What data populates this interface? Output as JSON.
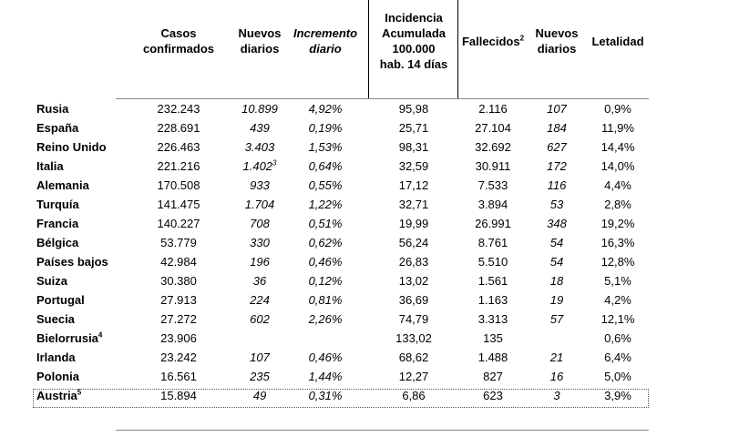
{
  "headers": {
    "casos": [
      "Casos",
      "confirmados"
    ],
    "nuevos1": [
      "Nuevos",
      "diarios"
    ],
    "incremento": [
      "Incremento",
      "diario"
    ],
    "incidencia": [
      "Incidencia",
      "Acumulada",
      "100.000",
      "hab. 14 días"
    ],
    "fallecidos": "Fallecidos",
    "fallecidos_sup": "2",
    "nuevos2": [
      "Nuevos",
      "diarios"
    ],
    "letalidad": "Letalidad"
  },
  "rows": [
    {
      "pais": "Rusia",
      "sup": "",
      "casos": "232.243",
      "nuevos": "10.899",
      "nuevos_sup": "",
      "inc": "4,92%",
      "incid": "95,98",
      "fall": "2.116",
      "nfall": "107",
      "let": "0,9%"
    },
    {
      "pais": "España",
      "sup": "",
      "casos": "228.691",
      "nuevos": "439",
      "nuevos_sup": "",
      "inc": "0,19%",
      "incid": "25,71",
      "fall": "27.104",
      "nfall": "184",
      "let": "11,9%"
    },
    {
      "pais": "Reino Unido",
      "sup": "",
      "casos": "226.463",
      "nuevos": "3.403",
      "nuevos_sup": "",
      "inc": "1,53%",
      "incid": "98,31",
      "fall": "32.692",
      "nfall": "627",
      "let": "14,4%"
    },
    {
      "pais": "Italia",
      "sup": "",
      "casos": "221.216",
      "nuevos": "1.402",
      "nuevos_sup": "3",
      "inc": "0,64%",
      "incid": "32,59",
      "fall": "30.911",
      "nfall": "172",
      "let": "14,0%"
    },
    {
      "pais": "Alemania",
      "sup": "",
      "casos": "170.508",
      "nuevos": "933",
      "nuevos_sup": "",
      "inc": "0,55%",
      "incid": "17,12",
      "fall": "7.533",
      "nfall": "116",
      "let": "4,4%"
    },
    {
      "pais": "Turquía",
      "sup": "",
      "casos": "141.475",
      "nuevos": "1.704",
      "nuevos_sup": "",
      "inc": "1,22%",
      "incid": "32,71",
      "fall": "3.894",
      "nfall": "53",
      "let": "2,8%"
    },
    {
      "pais": "Francia",
      "sup": "",
      "casos": "140.227",
      "nuevos": "708",
      "nuevos_sup": "",
      "inc": "0,51%",
      "incid": "19,99",
      "fall": "26.991",
      "nfall": "348",
      "let": "19,2%"
    },
    {
      "pais": "Bélgica",
      "sup": "",
      "casos": "53.779",
      "nuevos": "330",
      "nuevos_sup": "",
      "inc": "0,62%",
      "incid": "56,24",
      "fall": "8.761",
      "nfall": "54",
      "let": "16,3%"
    },
    {
      "pais": "Países bajos",
      "sup": "",
      "casos": "42.984",
      "nuevos": "196",
      "nuevos_sup": "",
      "inc": "0,46%",
      "incid": "26,83",
      "fall": "5.510",
      "nfall": "54",
      "let": "12,8%"
    },
    {
      "pais": "Suiza",
      "sup": "",
      "casos": "30.380",
      "nuevos": "36",
      "nuevos_sup": "",
      "inc": "0,12%",
      "incid": "13,02",
      "fall": "1.561",
      "nfall": "18",
      "let": "5,1%"
    },
    {
      "pais": "Portugal",
      "sup": "",
      "casos": "27.913",
      "nuevos": "224",
      "nuevos_sup": "",
      "inc": "0,81%",
      "incid": "36,69",
      "fall": "1.163",
      "nfall": "19",
      "let": "4,2%"
    },
    {
      "pais": "Suecia",
      "sup": "",
      "casos": "27.272",
      "nuevos": "602",
      "nuevos_sup": "",
      "inc": "2,26%",
      "incid": "74,79",
      "fall": "3.313",
      "nfall": "57",
      "let": "12,1%"
    },
    {
      "pais": "Bielorrusia",
      "sup": "4",
      "casos": "23.906",
      "nuevos": "",
      "nuevos_sup": "",
      "inc": "",
      "incid": "133,02",
      "fall": "135",
      "nfall": "",
      "let": "0,6%"
    },
    {
      "pais": "Irlanda",
      "sup": "",
      "casos": "23.242",
      "nuevos": "107",
      "nuevos_sup": "",
      "inc": "0,46%",
      "incid": "68,62",
      "fall": "1.488",
      "nfall": "21",
      "let": "6,4%"
    },
    {
      "pais": "Polonia",
      "sup": "",
      "casos": "16.561",
      "nuevos": "235",
      "nuevos_sup": "",
      "inc": "1,44%",
      "incid": "12,27",
      "fall": "827",
      "nfall": "16",
      "let": "5,0%"
    },
    {
      "pais": "Austria",
      "sup": "5",
      "casos": "15.894",
      "nuevos": "49",
      "nuevos_sup": "",
      "inc": "0,31%",
      "incid": "6,86",
      "fall": "623",
      "nfall": "3",
      "let": "3,9%"
    }
  ]
}
